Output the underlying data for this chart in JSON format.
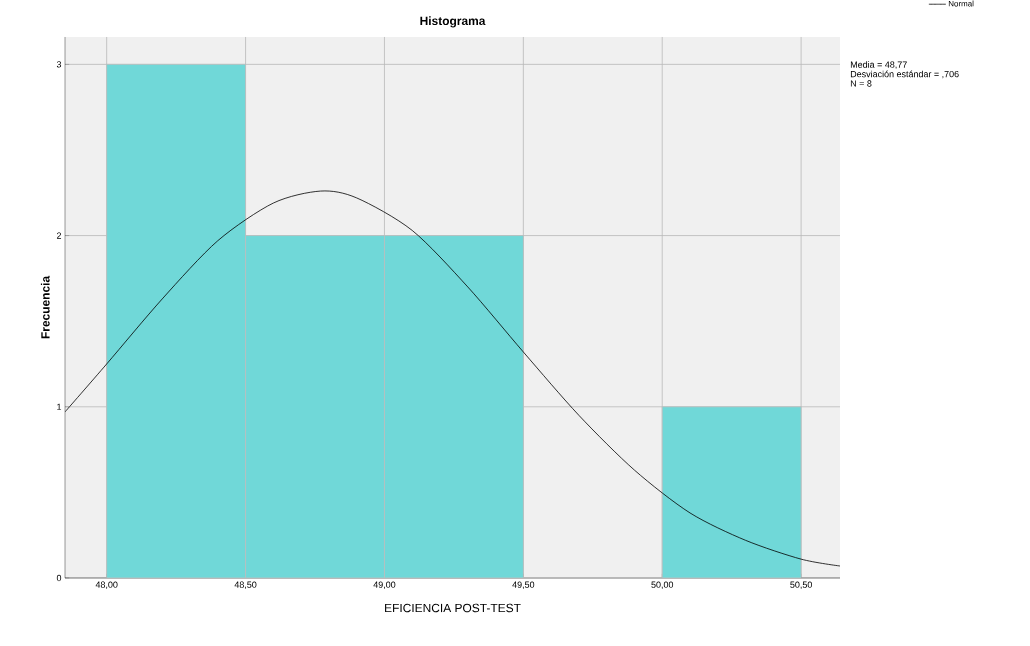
{
  "chart_data": {
    "type": "histogram",
    "title": "Histograma",
    "xlabel": "EFICIENCIA POST-TEST",
    "ylabel": "Frecuencia",
    "bins": [
      48.0,
      48.5,
      49.0,
      49.5,
      50.0,
      50.5
    ],
    "values": [
      3,
      2,
      2,
      0,
      1
    ],
    "color": "#70d8d8",
    "series": [
      {
        "name": "Normal",
        "type": "line",
        "color": "#000000",
        "x": [
          47.85,
          48.0,
          48.2,
          48.4,
          48.6,
          48.77,
          48.9,
          49.1,
          49.3,
          49.5,
          49.7,
          49.9,
          50.1,
          50.3,
          50.5,
          50.64
        ],
        "values": [
          0.97,
          1.25,
          1.63,
          1.97,
          2.19,
          2.26,
          2.22,
          2.03,
          1.7,
          1.32,
          0.95,
          0.63,
          0.38,
          0.22,
          0.11,
          0.07
        ]
      }
    ],
    "xlim": [
      47.85,
      50.64
    ],
    "ylim": [
      0,
      3.16
    ],
    "xticks": [
      {
        "value": 48.0,
        "label": "48,00"
      },
      {
        "value": 48.5,
        "label": "48,50"
      },
      {
        "value": 49.0,
        "label": "49,00"
      },
      {
        "value": 49.5,
        "label": "49,50"
      },
      {
        "value": 50.0,
        "label": "50,00"
      },
      {
        "value": 50.5,
        "label": "50,50"
      }
    ],
    "yticks": [
      0,
      1,
      2,
      3
    ],
    "annotations": [
      "Media = 48,77",
      "Desviación estándar = ,706",
      "N = 8"
    ],
    "grid": true,
    "legend": "top right"
  }
}
